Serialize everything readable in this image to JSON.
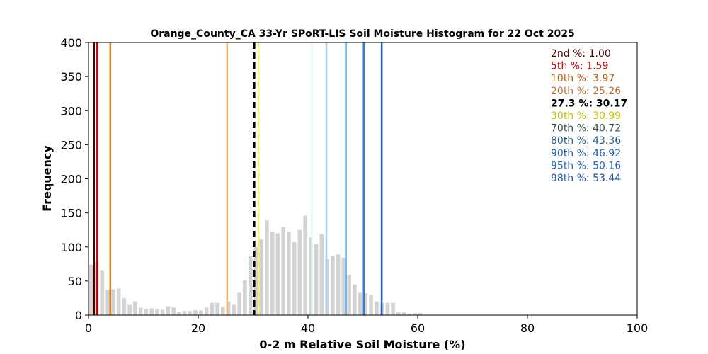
{
  "chart_data": {
    "type": "bar",
    "title": "Orange_County_CA 33-Yr SPoRT-LIS Soil Moisture Histogram for 22 Oct 2025",
    "xlabel": "0-2 m Relative Soil Moisture (%)",
    "ylabel": "Frequency",
    "xlim": [
      0,
      100
    ],
    "ylim": [
      0,
      400
    ],
    "xticks": [
      "0",
      "20",
      "40",
      "60",
      "80",
      "100"
    ],
    "yticks": [
      "0",
      "50",
      "100",
      "150",
      "200",
      "250",
      "300",
      "350",
      "400"
    ],
    "bar_color": "#d3d3d3",
    "bin_width": 1,
    "bins": [
      {
        "x": 0.5,
        "count": 74
      },
      {
        "x": 1.5,
        "count": 78
      },
      {
        "x": 2.5,
        "count": 65
      },
      {
        "x": 3.5,
        "count": 37
      },
      {
        "x": 4.5,
        "count": 38
      },
      {
        "x": 5.5,
        "count": 39
      },
      {
        "x": 6.5,
        "count": 25
      },
      {
        "x": 7.5,
        "count": 15
      },
      {
        "x": 8.5,
        "count": 20
      },
      {
        "x": 9.5,
        "count": 11
      },
      {
        "x": 10.5,
        "count": 9
      },
      {
        "x": 11.5,
        "count": 10
      },
      {
        "x": 12.5,
        "count": 9
      },
      {
        "x": 13.5,
        "count": 8
      },
      {
        "x": 14.5,
        "count": 13
      },
      {
        "x": 15.5,
        "count": 11
      },
      {
        "x": 16.5,
        "count": 5
      },
      {
        "x": 17.5,
        "count": 6
      },
      {
        "x": 18.5,
        "count": 6
      },
      {
        "x": 19.5,
        "count": 7
      },
      {
        "x": 20.5,
        "count": 7
      },
      {
        "x": 21.5,
        "count": 11
      },
      {
        "x": 22.5,
        "count": 18
      },
      {
        "x": 23.5,
        "count": 18
      },
      {
        "x": 24.5,
        "count": 12
      },
      {
        "x": 25.5,
        "count": 20
      },
      {
        "x": 26.5,
        "count": 15
      },
      {
        "x": 27.5,
        "count": 33
      },
      {
        "x": 28.5,
        "count": 51
      },
      {
        "x": 29.5,
        "count": 87
      },
      {
        "x": 30.5,
        "count": 100
      },
      {
        "x": 31.5,
        "count": 111
      },
      {
        "x": 32.5,
        "count": 139
      },
      {
        "x": 33.5,
        "count": 122
      },
      {
        "x": 34.5,
        "count": 120
      },
      {
        "x": 35.5,
        "count": 130
      },
      {
        "x": 36.5,
        "count": 122
      },
      {
        "x": 37.5,
        "count": 107
      },
      {
        "x": 38.5,
        "count": 125
      },
      {
        "x": 39.5,
        "count": 146
      },
      {
        "x": 40.5,
        "count": 114
      },
      {
        "x": 41.5,
        "count": 104
      },
      {
        "x": 42.5,
        "count": 119
      },
      {
        "x": 43.5,
        "count": 82
      },
      {
        "x": 44.5,
        "count": 87
      },
      {
        "x": 45.5,
        "count": 89
      },
      {
        "x": 46.5,
        "count": 84
      },
      {
        "x": 47.5,
        "count": 59
      },
      {
        "x": 48.5,
        "count": 45
      },
      {
        "x": 49.5,
        "count": 33
      },
      {
        "x": 50.5,
        "count": 32
      },
      {
        "x": 51.5,
        "count": 30
      },
      {
        "x": 52.5,
        "count": 20
      },
      {
        "x": 53.5,
        "count": 18
      },
      {
        "x": 54.5,
        "count": 18
      },
      {
        "x": 55.5,
        "count": 18
      },
      {
        "x": 56.5,
        "count": 4
      },
      {
        "x": 57.5,
        "count": 4
      },
      {
        "x": 58.5,
        "count": 2
      },
      {
        "x": 59.5,
        "count": 3
      },
      {
        "x": 60.5,
        "count": 3
      }
    ],
    "percentile_lines": [
      {
        "label": "2nd %: 1.00",
        "value": 1.0,
        "color": "#4d0000",
        "dashed": false
      },
      {
        "label": "5th %: 1.59",
        "value": 1.59,
        "color": "#c00000",
        "dashed": false
      },
      {
        "label": "10th %: 3.97",
        "value": 3.97,
        "color": "#e67e22",
        "dashed": false
      },
      {
        "label": "20th %: 25.26",
        "value": 25.26,
        "color": "#f5b26b",
        "dashed": false
      },
      {
        "label": "27.3 %: 30.17",
        "value": 30.17,
        "color": "#000000",
        "dashed": true
      },
      {
        "label": "30th %: 30.99",
        "value": 30.99,
        "color": "#f7f57a",
        "dashed": false
      },
      {
        "label": "70th %: 40.72",
        "value": 40.72,
        "color": "#e0f7fb",
        "dashed": false
      },
      {
        "label": "80th %: 43.36",
        "value": 43.36,
        "color": "#a9d1ef",
        "dashed": false
      },
      {
        "label": "90th %: 46.92",
        "value": 46.92,
        "color": "#5fa8e3",
        "dashed": false
      },
      {
        "label": "95th %: 50.16",
        "value": 50.16,
        "color": "#2e7fd1",
        "dashed": false
      },
      {
        "label": "98th %: 53.44",
        "value": 53.44,
        "color": "#1f5fbf",
        "dashed": false
      }
    ],
    "legend_placement": "top-right",
    "legend_text_colors": [
      "#4d0000",
      "#c00000",
      "#b35900",
      "#b8732e",
      "#000000",
      "#c9c200",
      "#2f4f4f",
      "#2b5b8a",
      "#1f5fbf",
      "#1f5fbf",
      "#1f4f9f"
    ]
  }
}
